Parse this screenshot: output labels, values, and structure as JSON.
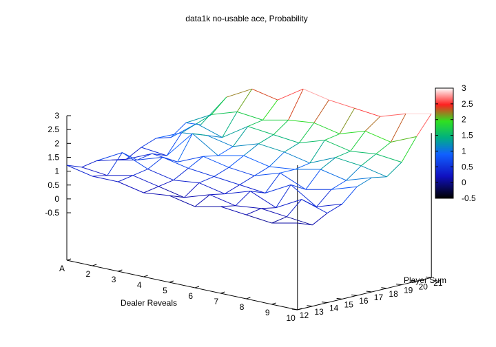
{
  "chart_data": {
    "type": "surface",
    "title": "data1k no-usable ace, Probability",
    "xlabel": "Dealer Reveals",
    "ylabel": "Player Sum",
    "x": [
      "A",
      "2",
      "3",
      "4",
      "5",
      "6",
      "7",
      "8",
      "9",
      "10"
    ],
    "y": [
      12,
      13,
      14,
      15,
      16,
      17,
      18,
      19,
      20,
      21
    ],
    "zlim": [
      -0.5,
      3
    ],
    "z_ticks": [
      "3",
      "2.5",
      "2",
      "1.5",
      "1",
      "0.5",
      "0",
      "-0.5"
    ],
    "x_ticks": [
      "A",
      "2",
      "3",
      "4",
      "5",
      "6",
      "7",
      "8",
      "9",
      "10"
    ],
    "y_ticks": [
      "12",
      "13",
      "14",
      "15",
      "16",
      "17",
      "18",
      "19",
      "20",
      "21"
    ],
    "colorbar": {
      "ticks": [
        "3",
        "2.5",
        "2",
        "1.5",
        "1",
        "0.5",
        "0",
        "-0.5"
      ],
      "range": [
        -0.5,
        3
      ],
      "palette": [
        "#000000",
        "#0000ff",
        "#00c000",
        "#ff0000",
        "#ffffff"
      ]
    },
    "grid": false,
    "legend_position": "right",
    "z": [
      [
        0.5,
        0.3,
        0.3,
        0.1,
        0.2,
        0.0,
        0.2,
        0.1,
        0.0,
        0.2
      ],
      [
        0.3,
        0.2,
        0.4,
        0.2,
        0.0,
        0.3,
        0.1,
        0.2,
        0.1,
        0.0
      ],
      [
        0.4,
        0.9,
        0.5,
        0.3,
        0.4,
        0.2,
        0.5,
        0.1,
        0.6,
        0.3
      ],
      [
        0.3,
        0.5,
        0.8,
        0.6,
        0.5,
        0.4,
        0.3,
        0.8,
        0.2,
        0.5
      ],
      [
        0.2,
        0.6,
        0.5,
        0.9,
        0.7,
        0.6,
        0.9,
        0.5,
        0.7,
        1.0
      ],
      [
        0.5,
        0.4,
        1.4,
        0.8,
        1.0,
        0.8,
        0.9,
        1.1,
        0.9,
        1.2
      ],
      [
        0.7,
        1.1,
        1.2,
        1.0,
        1.3,
        1.2,
        1.0,
        1.4,
        1.3,
        1.1
      ],
      [
        0.6,
        1.3,
        1.0,
        1.6,
        1.5,
        1.4,
        1.7,
        1.5,
        1.6,
        1.5
      ],
      [
        1.0,
        1.5,
        1.8,
        1.7,
        1.9,
        2.0,
        1.8,
        2.1,
        1.9,
        2.3
      ],
      [
        0.8,
        2.0,
        2.5,
        2.3,
        2.9,
        2.7,
        2.6,
        2.5,
        2.8,
        3.0
      ]
    ]
  }
}
